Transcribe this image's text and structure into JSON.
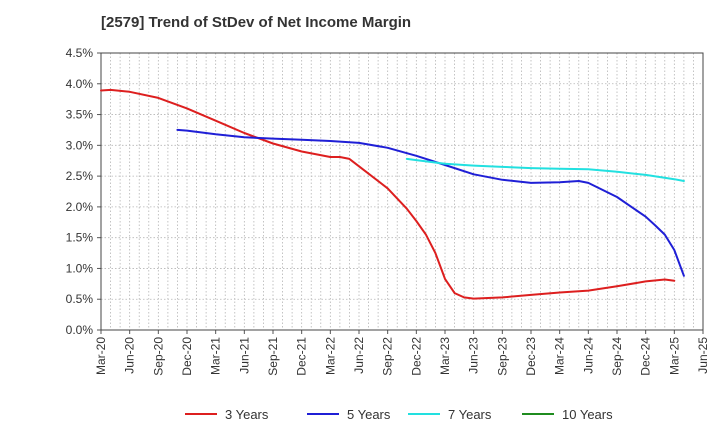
{
  "chart_data": {
    "type": "line",
    "title": "[2579]  Trend of StDev of Net Income Margin",
    "xlabel": "",
    "ylabel": "",
    "x_ticks": [
      "Mar-20",
      "Jun-20",
      "Sep-20",
      "Dec-20",
      "Mar-21",
      "Jun-21",
      "Sep-21",
      "Dec-21",
      "Mar-22",
      "Jun-22",
      "Sep-22",
      "Dec-22",
      "Mar-23",
      "Jun-23",
      "Sep-23",
      "Dec-23",
      "Mar-24",
      "Jun-24",
      "Sep-24",
      "Dec-24",
      "Mar-25",
      "Jun-25"
    ],
    "y_ticks": [
      "0.0%",
      "0.5%",
      "1.0%",
      "1.5%",
      "2.0%",
      "2.5%",
      "3.0%",
      "3.5%",
      "4.0%",
      "4.5%"
    ],
    "ylim": [
      0,
      4.5
    ],
    "grid": true,
    "legend_position": "bottom",
    "series": [
      {
        "name": "3 Years",
        "color": "#dd1f1f",
        "points": [
          [
            "Mar-20",
            3.89
          ],
          [
            "Apr-20",
            3.9
          ],
          [
            "Jun-20",
            3.87
          ],
          [
            "Sep-20",
            3.77
          ],
          [
            "Dec-20",
            3.6
          ],
          [
            "Mar-21",
            3.4
          ],
          [
            "Jun-21",
            3.2
          ],
          [
            "Sep-21",
            3.03
          ],
          [
            "Dec-21",
            2.9
          ],
          [
            "Mar-22",
            2.81
          ],
          [
            "Apr-22",
            2.81
          ],
          [
            "May-22",
            2.78
          ],
          [
            "Jun-22",
            2.66
          ],
          [
            "Sep-22",
            2.3
          ],
          [
            "Nov-22",
            1.97
          ],
          [
            "Dec-22",
            1.77
          ],
          [
            "Jan-23",
            1.55
          ],
          [
            "Feb-23",
            1.25
          ],
          [
            "Mar-23",
            0.83
          ],
          [
            "Apr-23",
            0.6
          ],
          [
            "May-23",
            0.53
          ],
          [
            "Jun-23",
            0.51
          ],
          [
            "Sep-23",
            0.53
          ],
          [
            "Dec-23",
            0.57
          ],
          [
            "Mar-24",
            0.61
          ],
          [
            "Jun-24",
            0.64
          ],
          [
            "Sep-24",
            0.71
          ],
          [
            "Dec-24",
            0.79
          ],
          [
            "Feb-25",
            0.82
          ],
          [
            "Mar-25",
            0.8
          ]
        ]
      },
      {
        "name": "5 Years",
        "color": "#1f1fd6",
        "points": [
          [
            "Nov-20",
            3.25
          ],
          [
            "Dec-20",
            3.24
          ],
          [
            "Mar-21",
            3.18
          ],
          [
            "Jun-21",
            3.13
          ],
          [
            "Sep-21",
            3.11
          ],
          [
            "Dec-21",
            3.09
          ],
          [
            "Mar-22",
            3.07
          ],
          [
            "Jun-22",
            3.04
          ],
          [
            "Sep-22",
            2.96
          ],
          [
            "Dec-22",
            2.83
          ],
          [
            "Mar-23",
            2.68
          ],
          [
            "Jun-23",
            2.53
          ],
          [
            "Sep-23",
            2.44
          ],
          [
            "Dec-23",
            2.39
          ],
          [
            "Mar-24",
            2.4
          ],
          [
            "May-24",
            2.42
          ],
          [
            "Jun-24",
            2.39
          ],
          [
            "Sep-24",
            2.16
          ],
          [
            "Dec-24",
            1.84
          ],
          [
            "Jan-25",
            1.7
          ],
          [
            "Feb-25",
            1.55
          ],
          [
            "Mar-25",
            1.3
          ],
          [
            "Apr-25",
            0.88
          ]
        ]
      },
      {
        "name": "7 Years",
        "color": "#22e0e0",
        "points": [
          [
            "Nov-22",
            2.78
          ],
          [
            "Dec-22",
            2.76
          ],
          [
            "Mar-23",
            2.7
          ],
          [
            "Jun-23",
            2.67
          ],
          [
            "Sep-23",
            2.65
          ],
          [
            "Dec-23",
            2.63
          ],
          [
            "Mar-24",
            2.62
          ],
          [
            "Jun-24",
            2.61
          ],
          [
            "Sep-24",
            2.57
          ],
          [
            "Dec-24",
            2.52
          ],
          [
            "Mar-25",
            2.45
          ],
          [
            "Apr-25",
            2.42
          ]
        ]
      },
      {
        "name": "10 Years",
        "color": "#1f8c1f",
        "points": []
      }
    ]
  }
}
